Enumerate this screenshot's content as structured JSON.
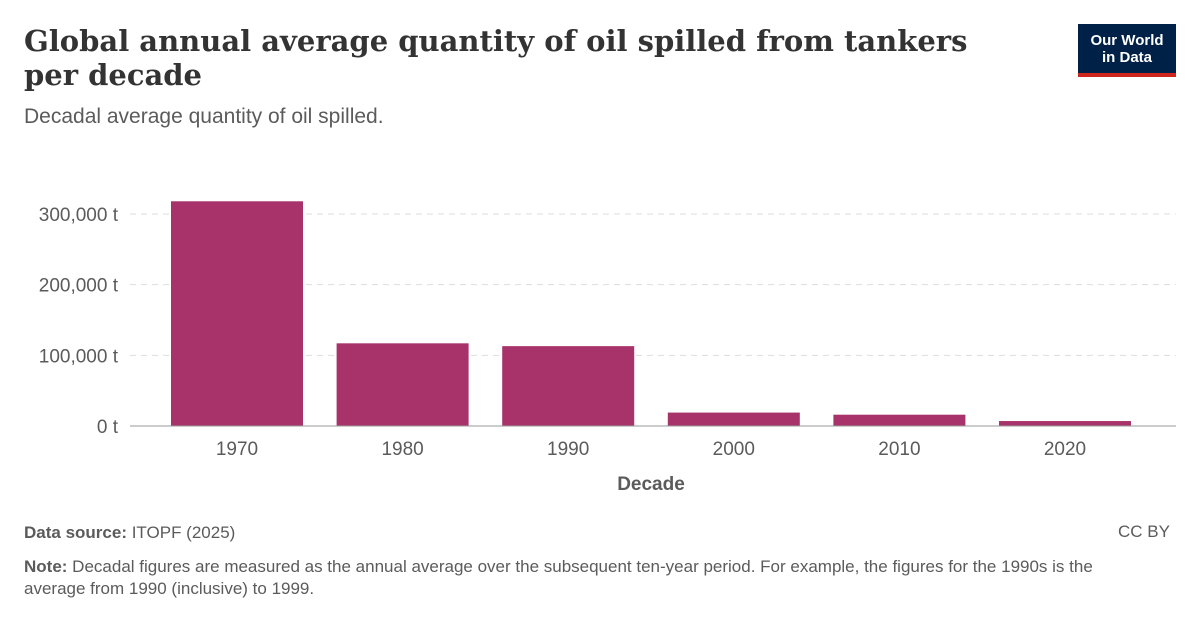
{
  "header": {
    "title": "Global annual average quantity of oil spilled from tankers per decade",
    "subtitle": "Decadal average quantity of oil spilled.",
    "logo_line1": "Our World",
    "logo_line2": "in Data"
  },
  "footer": {
    "source_label": "Data source:",
    "source_value": " ITOPF (2025)",
    "license": "CC BY",
    "note_label": "Note:",
    "note_text": " Decadal figures are measured as the annual average over the subsequent ten-year period. For example, the figures for the 1990s is the average from 1990 (inclusive) to 1999."
  },
  "colors": {
    "bar": "#a8336a",
    "logo_bg": "#002147",
    "logo_accent": "#ce261e"
  },
  "chart_data": {
    "type": "bar",
    "categories": [
      "1970",
      "1980",
      "1990",
      "2000",
      "2010",
      "2020"
    ],
    "values": [
      318000,
      117000,
      113000,
      19000,
      16000,
      7000
    ],
    "xlabel": "Decade",
    "ylabel": "",
    "ylim": [
      0,
      300000
    ],
    "yticks": [
      0,
      100000,
      200000,
      300000
    ],
    "ytick_labels": [
      "0 t",
      "100,000 t",
      "200,000 t",
      "300,000 t"
    ],
    "grid": true
  }
}
